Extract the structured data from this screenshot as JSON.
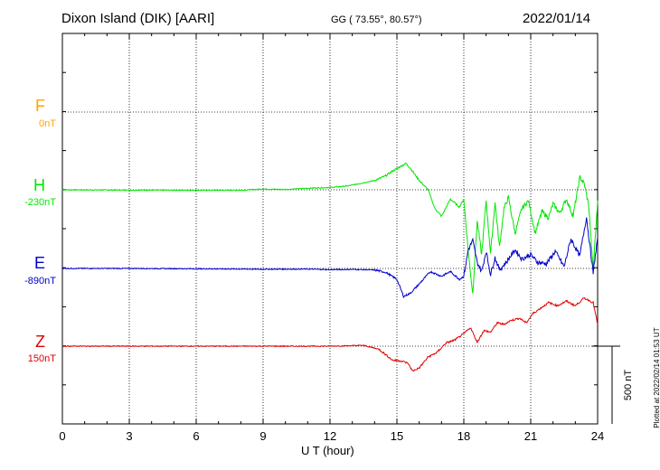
{
  "header": {
    "title": "Dixon Island (DIK)  [AARI]",
    "coords": "GG ( 73.55°,  80.57°)",
    "date": "2022/01/14"
  },
  "footer": {
    "xlabel": "U T (hour)",
    "scale_label": "500 nT",
    "plotted": "Plotted at 2022/02/14 01:53 UT"
  },
  "colors": {
    "F": "#ffa500",
    "H": "#00e600",
    "E": "#0000cc",
    "Z": "#e00000"
  },
  "chart_data": {
    "type": "line",
    "title": "Dixon Island (DIK)  [AARI]",
    "xlabel": "U T (hour)",
    "xlim": [
      0,
      24
    ],
    "x_ticks": [
      "0",
      "3",
      "6",
      "9",
      "12",
      "15",
      "18",
      "21",
      "24"
    ],
    "scale_bar_nT": 500,
    "grid": true,
    "series": [
      {
        "name": "F",
        "baseline": "0nT",
        "color": "#ffa500",
        "points": []
      },
      {
        "name": "H",
        "baseline": "-230nT",
        "color": "#00e600",
        "points": [
          [
            0,
            0
          ],
          [
            3,
            -2
          ],
          [
            6,
            -3
          ],
          [
            8,
            -3
          ],
          [
            9,
            5
          ],
          [
            10,
            2
          ],
          [
            11,
            10
          ],
          [
            12,
            15
          ],
          [
            12.8,
            25
          ],
          [
            13.5,
            45
          ],
          [
            14,
            60
          ],
          [
            14.5,
            90
          ],
          [
            14.8,
            120
          ],
          [
            15.1,
            145
          ],
          [
            15.4,
            170
          ],
          [
            15.6,
            140
          ],
          [
            16,
            60
          ],
          [
            16.4,
            0
          ],
          [
            16.7,
            -120
          ],
          [
            17,
            -170
          ],
          [
            17.4,
            -60
          ],
          [
            17.8,
            -110
          ],
          [
            18,
            -60
          ],
          [
            18.2,
            -400
          ],
          [
            18.4,
            -670
          ],
          [
            18.6,
            -200
          ],
          [
            18.8,
            -420
          ],
          [
            19,
            -70
          ],
          [
            19.2,
            -410
          ],
          [
            19.4,
            -80
          ],
          [
            19.6,
            -370
          ],
          [
            19.8,
            -120
          ],
          [
            20,
            -50
          ],
          [
            20.3,
            -280
          ],
          [
            20.6,
            -120
          ],
          [
            20.9,
            -70
          ],
          [
            21.2,
            -280
          ],
          [
            21.5,
            -140
          ],
          [
            21.8,
            -180
          ],
          [
            22,
            -90
          ],
          [
            22.3,
            -150
          ],
          [
            22.6,
            -60
          ],
          [
            22.9,
            -170
          ],
          [
            23.2,
            80
          ],
          [
            23.4,
            40
          ],
          [
            23.6,
            -100
          ],
          [
            23.8,
            -520
          ],
          [
            24,
            -70
          ]
        ]
      },
      {
        "name": "E",
        "baseline": "-890nT",
        "color": "#0000cc",
        "points": [
          [
            0,
            0
          ],
          [
            3,
            0
          ],
          [
            6,
            -2
          ],
          [
            9,
            -5
          ],
          [
            11,
            -4
          ],
          [
            12,
            -8
          ],
          [
            13,
            -6
          ],
          [
            14,
            -10
          ],
          [
            14.5,
            -25
          ],
          [
            15,
            -70
          ],
          [
            15.3,
            -180
          ],
          [
            15.6,
            -160
          ],
          [
            16,
            -100
          ],
          [
            16.5,
            -20
          ],
          [
            17,
            -50
          ],
          [
            17.4,
            -20
          ],
          [
            17.8,
            -70
          ],
          [
            18,
            -50
          ],
          [
            18.2,
            120
          ],
          [
            18.4,
            180
          ],
          [
            18.6,
            40
          ],
          [
            18.8,
            -20
          ],
          [
            19,
            110
          ],
          [
            19.2,
            -40
          ],
          [
            19.4,
            70
          ],
          [
            19.6,
            -10
          ],
          [
            19.9,
            40
          ],
          [
            20.3,
            120
          ],
          [
            20.6,
            60
          ],
          [
            21,
            90
          ],
          [
            21.3,
            40
          ],
          [
            21.7,
            30
          ],
          [
            22.1,
            110
          ],
          [
            22.5,
            10
          ],
          [
            22.8,
            190
          ],
          [
            23.2,
            80
          ],
          [
            23.5,
            330
          ],
          [
            23.8,
            -30
          ],
          [
            24,
            200
          ]
        ]
      },
      {
        "name": "Z",
        "baseline": "150nT",
        "color": "#e00000",
        "points": [
          [
            0,
            0
          ],
          [
            3,
            0
          ],
          [
            6,
            0
          ],
          [
            9,
            0
          ],
          [
            12,
            0
          ],
          [
            13.5,
            5
          ],
          [
            14.2,
            -20
          ],
          [
            14.8,
            -90
          ],
          [
            15.2,
            -95
          ],
          [
            15.5,
            -110
          ],
          [
            15.7,
            -160
          ],
          [
            16,
            -140
          ],
          [
            16.4,
            -70
          ],
          [
            16.8,
            -40
          ],
          [
            17.2,
            20
          ],
          [
            17.6,
            40
          ],
          [
            18,
            80
          ],
          [
            18.3,
            120
          ],
          [
            18.6,
            25
          ],
          [
            18.9,
            100
          ],
          [
            19.2,
            90
          ],
          [
            19.5,
            150
          ],
          [
            19.8,
            140
          ],
          [
            20.1,
            165
          ],
          [
            20.5,
            180
          ],
          [
            20.8,
            150
          ],
          [
            21.1,
            210
          ],
          [
            21.4,
            240
          ],
          [
            21.8,
            280
          ],
          [
            22.2,
            260
          ],
          [
            22.6,
            290
          ],
          [
            23,
            260
          ],
          [
            23.4,
            310
          ],
          [
            23.8,
            280
          ],
          [
            24,
            140
          ]
        ]
      }
    ]
  }
}
